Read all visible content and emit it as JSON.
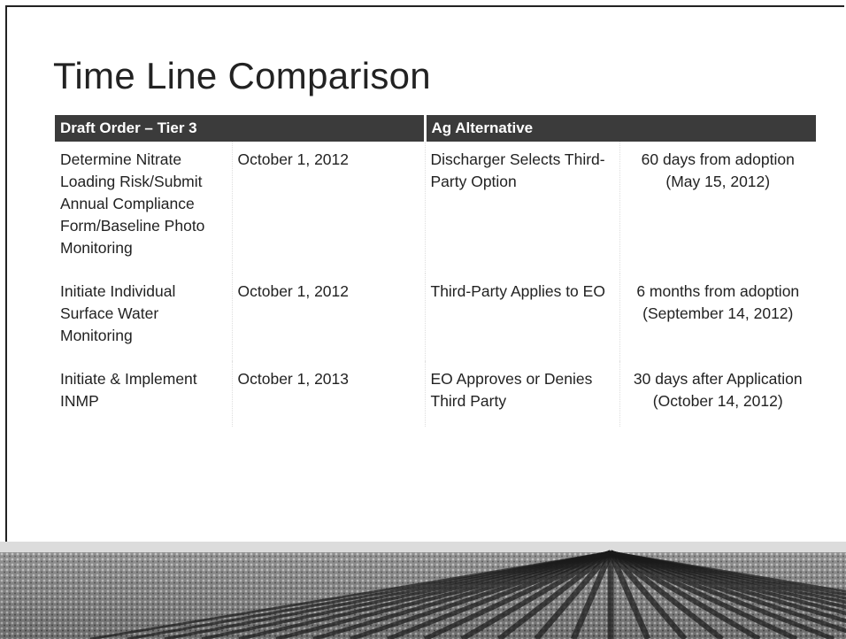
{
  "header": {
    "title": "Time Line Comparison"
  },
  "table": {
    "headers": [
      "Draft Order – Tier 3",
      "Ag Alternative"
    ],
    "rows": [
      [
        "Determine Nitrate Loading Risk/Submit Annual Compliance Form/Baseline Photo Monitoring",
        "October 1, 2012",
        "Discharger Selects Third-Party Option",
        "60 days from adoption (May 15, 2012)"
      ],
      [
        "Initiate Individual Surface Water Monitoring",
        "October 1, 2012",
        "Third-Party Applies to EO",
        "6 months from adoption (September 14, 2012)"
      ],
      [
        "Initiate & Implement INMP",
        "October 1, 2013",
        "EO Approves or Denies Third Party",
        "30 days after Application (October 14, 2012)"
      ]
    ]
  }
}
